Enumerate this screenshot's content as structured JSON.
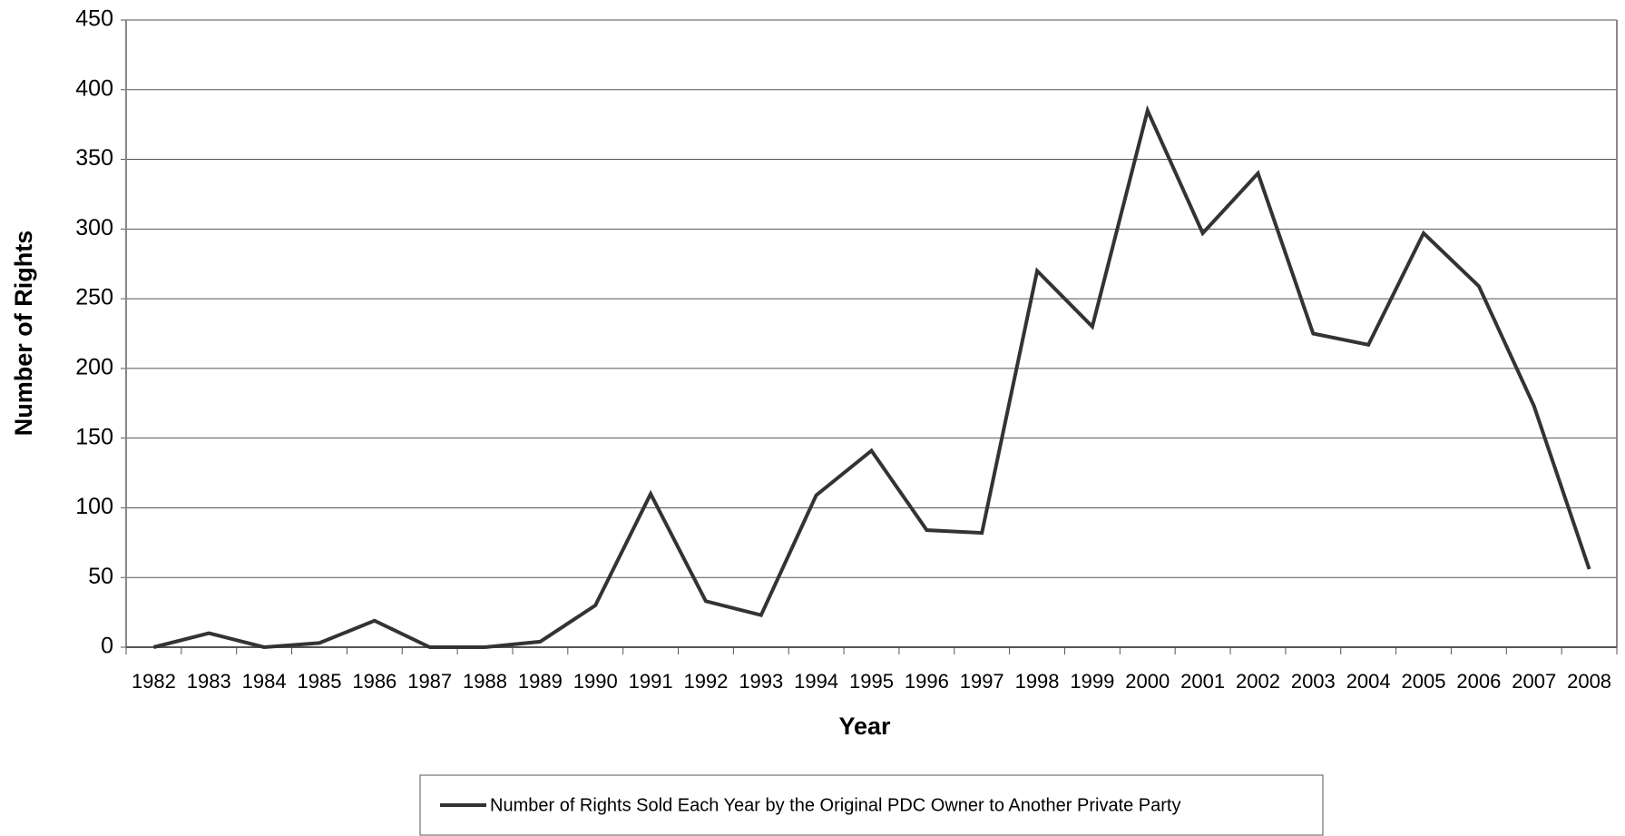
{
  "chart_data": {
    "type": "line",
    "x_label": "Year",
    "y_label": "Number of Rights",
    "categories": [
      "1982",
      "1983",
      "1984",
      "1985",
      "1986",
      "1987",
      "1988",
      "1989",
      "1990",
      "1991",
      "1992",
      "1993",
      "1994",
      "1995",
      "1996",
      "1997",
      "1998",
      "1999",
      "2000",
      "2001",
      "2002",
      "2003",
      "2004",
      "2005",
      "2006",
      "2007",
      "2008"
    ],
    "series": [
      {
        "name": "Number of Rights Sold Each Year by the Original PDC Owner to Another Private Party",
        "color": "#333333",
        "values": [
          0,
          10,
          0,
          3,
          19,
          0,
          0,
          4,
          30,
          110,
          33,
          23,
          109,
          141,
          84,
          82,
          270,
          230,
          385,
          297,
          340,
          225,
          217,
          297,
          259,
          173,
          56
        ]
      }
    ],
    "ylim": [
      0,
      450
    ],
    "yticks": [
      0,
      50,
      100,
      150,
      200,
      250,
      300,
      350,
      400,
      450
    ],
    "grid": true,
    "legend": "bottom"
  }
}
